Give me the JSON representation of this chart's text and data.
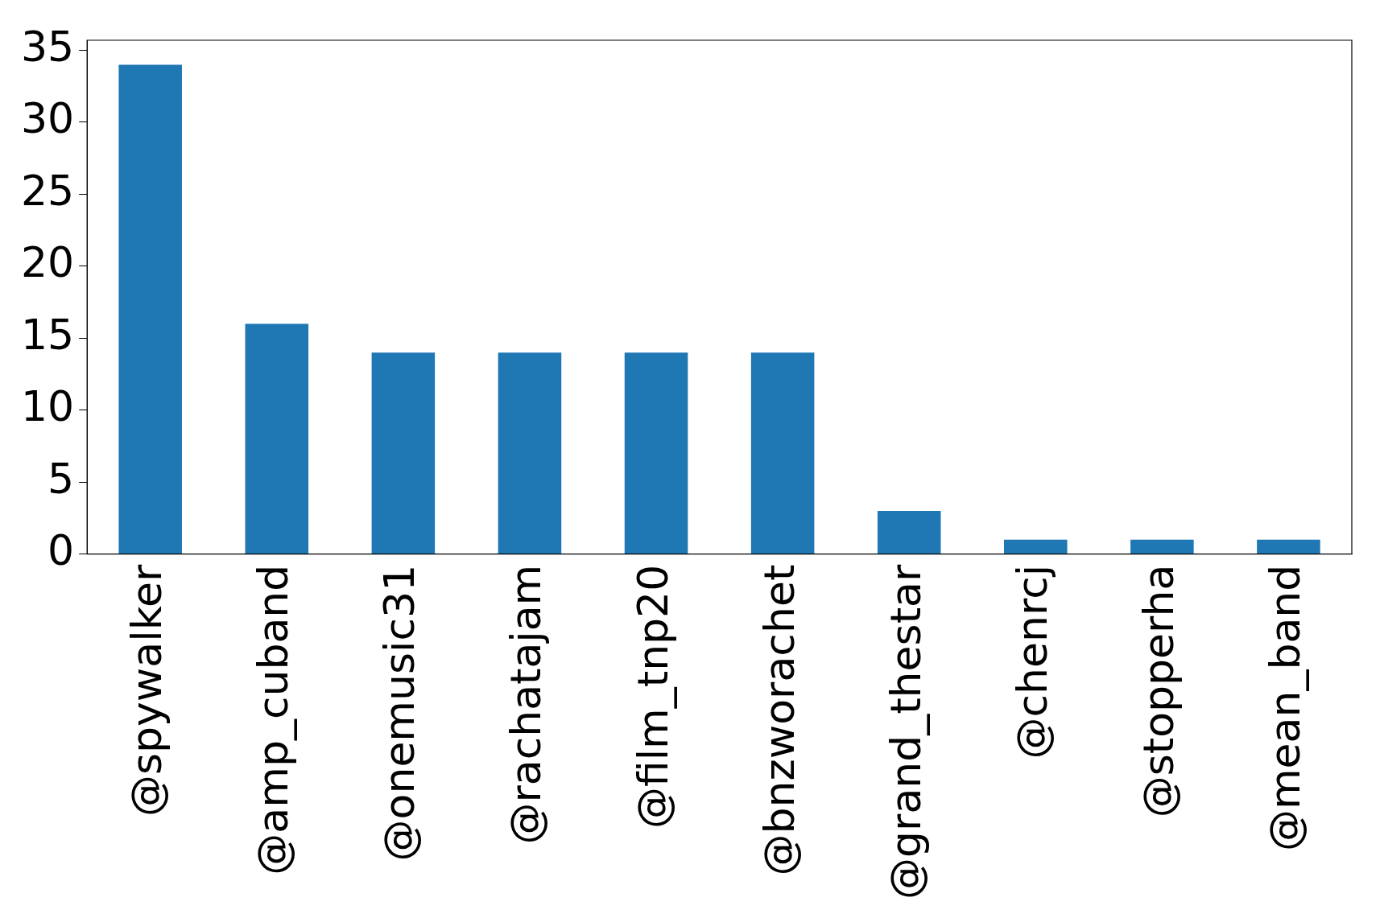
{
  "chart_data": {
    "type": "bar",
    "categories": [
      "@spywalker",
      "@amp_cuband",
      "@onemusic31",
      "@rachatajam",
      "@film_tnp20",
      "@bnzworachet",
      "@grand_thestar",
      "@chenrcj",
      "@stopperha",
      "@mean_band"
    ],
    "values": [
      34,
      16,
      14,
      14,
      14,
      14,
      3,
      1,
      1,
      1
    ],
    "color": "#1f77b4",
    "ylim": [
      0,
      35.7
    ],
    "yticks": [
      0,
      5,
      10,
      15,
      20,
      25,
      30,
      35
    ],
    "grid": false,
    "legend": false
  }
}
